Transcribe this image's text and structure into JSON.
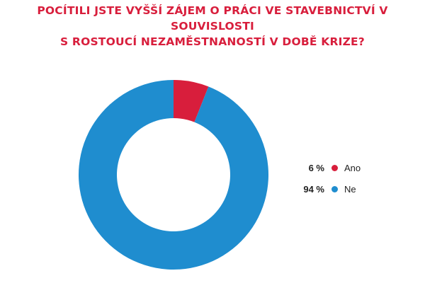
{
  "chart_data": {
    "type": "pie",
    "variant": "donut",
    "title_lines": [
      "POCÍTILI JSTE VYŠŠÍ ZÁJEM O PRÁCI VE STAVEBNICTVÍ V SOUVISLOSTI",
      "S ROSTOUCÍ NEZAMĚSTNANOSTÍ V DOBĚ KRIZE?"
    ],
    "slices": [
      {
        "label": "Ano",
        "value": 6,
        "value_label": "6 %",
        "color": "#d81e3c"
      },
      {
        "label": "Ne",
        "value": 94,
        "value_label": "94 %",
        "color": "#1f8dcf"
      }
    ],
    "legend_position": "right"
  }
}
